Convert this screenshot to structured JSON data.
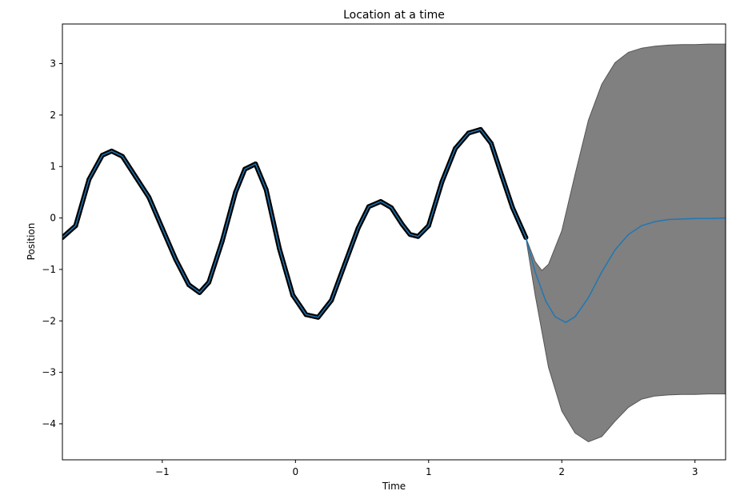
{
  "chart_data": {
    "type": "line",
    "title": "Location at a time",
    "xlabel": "Time",
    "ylabel": "Position",
    "xlim": [
      -1.75,
      3.23
    ],
    "ylim": [
      -4.7,
      3.77
    ],
    "grid": false,
    "xticks": [
      {
        "value": -1,
        "label": "−1"
      },
      {
        "value": 0,
        "label": "0"
      },
      {
        "value": 1,
        "label": "1"
      },
      {
        "value": 2,
        "label": "2"
      },
      {
        "value": 3,
        "label": "3"
      }
    ],
    "yticks": [
      {
        "value": 3,
        "label": "3"
      },
      {
        "value": 2,
        "label": "2"
      },
      {
        "value": 1,
        "label": "1"
      },
      {
        "value": 0,
        "label": "0"
      },
      {
        "value": -1,
        "label": "−1"
      },
      {
        "value": -2,
        "label": "−2"
      },
      {
        "value": -3,
        "label": "−3"
      },
      {
        "value": -4,
        "label": "−4"
      }
    ],
    "observations": {
      "color": "#000000",
      "x": [
        -1.75,
        -1.65,
        -1.55,
        -1.45,
        -1.38,
        -1.3,
        -1.2,
        -1.1,
        -1.0,
        -0.9,
        -0.8,
        -0.72,
        -0.65,
        -0.55,
        -0.45,
        -0.38,
        -0.3,
        -0.22,
        -0.12,
        -0.02,
        0.08,
        0.17,
        0.27,
        0.37,
        0.47,
        0.55,
        0.64,
        0.72,
        0.8,
        0.86,
        0.92,
        1.0,
        1.1,
        1.2,
        1.3,
        1.39,
        1.47,
        1.55,
        1.63,
        1.73
      ],
      "y": [
        -0.38,
        -0.15,
        0.75,
        1.22,
        1.3,
        1.2,
        0.8,
        0.4,
        -0.2,
        -0.8,
        -1.3,
        -1.45,
        -1.25,
        -0.45,
        0.5,
        0.95,
        1.05,
        0.55,
        -0.6,
        -1.5,
        -1.88,
        -1.93,
        -1.6,
        -0.9,
        -0.2,
        0.22,
        0.32,
        0.2,
        -0.12,
        -0.32,
        -0.36,
        -0.15,
        0.7,
        1.35,
        1.65,
        1.72,
        1.45,
        0.82,
        0.2,
        -0.38
      ]
    },
    "series": [
      {
        "color": "#1f77b4",
        "x": [
          -1.75,
          -1.65,
          -1.55,
          -1.45,
          -1.38,
          -1.3,
          -1.2,
          -1.1,
          -1.0,
          -0.9,
          -0.8,
          -0.72,
          -0.65,
          -0.55,
          -0.45,
          -0.38,
          -0.3,
          -0.22,
          -0.12,
          -0.02,
          0.08,
          0.17,
          0.27,
          0.37,
          0.47,
          0.55,
          0.64,
          0.72,
          0.8,
          0.86,
          0.92,
          1.0,
          1.1,
          1.2,
          1.3,
          1.39,
          1.47,
          1.55,
          1.63,
          1.73,
          1.8,
          1.88,
          1.95,
          2.03,
          2.1,
          2.2,
          2.3,
          2.4,
          2.5,
          2.6,
          2.7,
          2.8,
          2.9,
          3.0,
          3.1,
          3.23
        ],
        "y": [
          -0.38,
          -0.15,
          0.75,
          1.22,
          1.3,
          1.2,
          0.8,
          0.4,
          -0.2,
          -0.8,
          -1.3,
          -1.45,
          -1.25,
          -0.45,
          0.5,
          0.95,
          1.05,
          0.55,
          -0.6,
          -1.5,
          -1.88,
          -1.93,
          -1.6,
          -0.9,
          -0.2,
          0.22,
          0.32,
          0.2,
          -0.12,
          -0.32,
          -0.36,
          -0.15,
          0.7,
          1.35,
          1.65,
          1.72,
          1.45,
          0.82,
          0.2,
          -0.38,
          -1.05,
          -1.62,
          -1.92,
          -2.03,
          -1.92,
          -1.55,
          -1.05,
          -0.62,
          -0.32,
          -0.15,
          -0.07,
          -0.03,
          -0.02,
          -0.01,
          -0.01,
          0.0
        ]
      }
    ],
    "confidence_band": {
      "color": "#808080",
      "edge_color": "#555555",
      "x": [
        1.73,
        1.8,
        1.85,
        1.9,
        2.0,
        2.1,
        2.2,
        2.3,
        2.4,
        2.5,
        2.6,
        2.7,
        2.8,
        2.9,
        3.0,
        3.1,
        3.23
      ],
      "lower": [
        -0.38,
        -1.5,
        -2.2,
        -2.9,
        -3.75,
        -4.18,
        -4.35,
        -4.25,
        -3.95,
        -3.68,
        -3.52,
        -3.46,
        -3.44,
        -3.43,
        -3.43,
        -3.42,
        -3.42
      ],
      "upper": [
        -0.38,
        -0.85,
        -1.02,
        -0.9,
        -0.25,
        0.85,
        1.9,
        2.6,
        3.02,
        3.22,
        3.3,
        3.34,
        3.36,
        3.37,
        3.37,
        3.38,
        3.38
      ]
    }
  }
}
